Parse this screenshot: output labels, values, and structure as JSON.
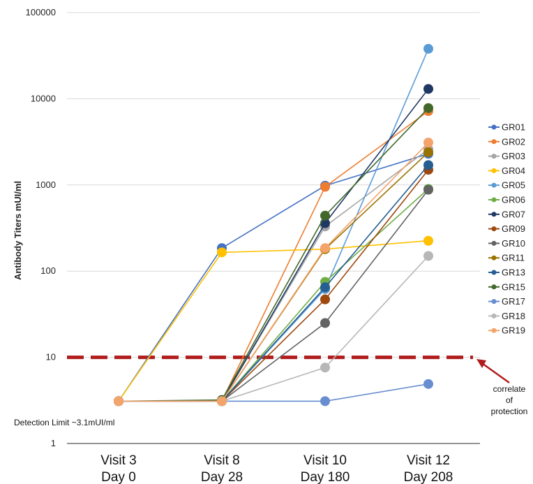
{
  "chart_data": {
    "type": "line",
    "y_scale": "log",
    "ylim": [
      1,
      100000
    ],
    "ylabel": "Antibody Titers mUI/ml",
    "y_ticks": [
      "1",
      "10",
      "100",
      "1000",
      "10000",
      "100000"
    ],
    "y_tick_values": [
      1,
      10,
      100,
      1000,
      10000,
      100000
    ],
    "categories": [
      [
        "Visit 3",
        "Day 0"
      ],
      [
        "Visit 8",
        "Day 28"
      ],
      [
        "Visit 10",
        "Day 180"
      ],
      [
        "Visit 12",
        "Day 208"
      ]
    ],
    "grid": true,
    "legend_position": "right",
    "threshold": {
      "value": 10,
      "label": [
        "correlate",
        "of",
        "protection"
      ],
      "color": "#b01c1c"
    },
    "detection_limit_label": "Detection Limit ~3.1mUI/ml",
    "series": [
      {
        "name": "GR01",
        "color": "#4472c4",
        "values": [
          3.1,
          185,
          980,
          2300
        ]
      },
      {
        "name": "GR02",
        "color": "#ed7d31",
        "values": [
          3.1,
          3.1,
          950,
          7200
        ]
      },
      {
        "name": "GR03",
        "color": "#a5a5a5",
        "values": [
          3.1,
          3.1,
          330,
          2600
        ]
      },
      {
        "name": "GR04",
        "color": "#ffc000",
        "values": [
          3.1,
          165,
          180,
          225
        ]
      },
      {
        "name": "GR05",
        "color": "#5b9bd5",
        "values": [
          3.1,
          3.1,
          62,
          38000
        ]
      },
      {
        "name": "GR06",
        "color": "#70ad47",
        "values": [
          3.1,
          3.1,
          75,
          900
        ]
      },
      {
        "name": "GR07",
        "color": "#1f3864",
        "values": [
          3.1,
          3.1,
          360,
          13000
        ]
      },
      {
        "name": "GR09",
        "color": "#9e480e",
        "values": [
          3.1,
          3.1,
          47,
          1500
        ]
      },
      {
        "name": "GR10",
        "color": "#636363",
        "values": [
          3.1,
          3.1,
          25,
          880
        ]
      },
      {
        "name": "GR11",
        "color": "#997300",
        "values": [
          3.1,
          3.1,
          180,
          2400
        ]
      },
      {
        "name": "GR13",
        "color": "#255e91",
        "values": [
          3.1,
          3.1,
          65,
          1700
        ]
      },
      {
        "name": "GR15",
        "color": "#43682b",
        "values": [
          3.1,
          3.2,
          440,
          7800
        ]
      },
      {
        "name": "GR17",
        "color": "#698ed0",
        "values": [
          3.1,
          3.1,
          3.1,
          4.9
        ]
      },
      {
        "name": "GR18",
        "color": "#b7b7b7",
        "values": [
          3.1,
          3.1,
          7.6,
          150
        ]
      },
      {
        "name": "GR19",
        "color": "#f4a36a",
        "values": [
          3.1,
          3.1,
          185,
          3100
        ]
      }
    ]
  }
}
